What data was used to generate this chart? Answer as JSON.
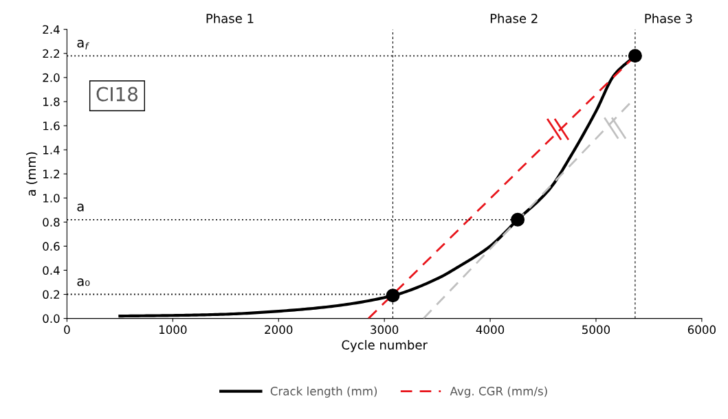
{
  "chart_data": {
    "type": "line",
    "xlabel": "Cycle number",
    "ylabel": "a (mm)",
    "xlim": [
      0,
      6000
    ],
    "xticks": [
      0,
      1000,
      2000,
      3000,
      4000,
      5000,
      6000
    ],
    "ylim": [
      0,
      2.4
    ],
    "yticks": [
      {
        "value": 0,
        "label": "0.0"
      },
      {
        "value": 0.2,
        "label": "0.2"
      },
      {
        "value": 0.4,
        "label": "0.4"
      },
      {
        "value": 0.6,
        "label": "0.6"
      },
      {
        "value": 0.8,
        "label": "0.8"
      },
      {
        "value": 1.0,
        "label": "1.0"
      },
      {
        "value": 1.2,
        "label": "1.2"
      },
      {
        "value": 1.4,
        "label": "1.4"
      },
      {
        "value": 1.6,
        "label": "1.6"
      },
      {
        "value": 1.8,
        "label": "1.8"
      },
      {
        "value": 2.0,
        "label": "2.0"
      },
      {
        "value": 2.2,
        "label": "2.2"
      },
      {
        "value": 2.4,
        "label": "2.4"
      }
    ],
    "grid": false,
    "legend": "bottom",
    "series": [
      {
        "name": "Crack length (mm)",
        "color": "#000000",
        "line_style": "solid",
        "marker": "none",
        "x": [
          500,
          1000,
          1500,
          2000,
          2500,
          3080,
          3500,
          3702,
          4000,
          4260,
          4567,
          4763,
          5000,
          5172,
          5370
        ],
        "values": [
          0.02,
          0.025,
          0.035,
          0.06,
          0.1,
          0.19,
          0.33,
          0.43,
          0.6,
          0.82,
          1.08,
          1.35,
          1.72,
          2.02,
          2.18
        ]
      },
      {
        "name": "Avg. CGR (mm/s)",
        "color": "#e8151b",
        "line_style": "dashed",
        "marker": "none",
        "x": [
          2850,
          5370
        ],
        "values": [
          0,
          2.18
        ]
      },
      {
        "color": "#c0c0c0",
        "line_style": "dashed",
        "marker": "none",
        "x": [
          3370,
          5335
        ],
        "values": [
          0,
          1.8
        ]
      },
      {
        "type": "scatter",
        "color": "#000000",
        "marker": "circle",
        "x": [
          3080,
          4260,
          5370
        ],
        "values": [
          0.19,
          0.82,
          2.18
        ]
      },
      {
        "color": "#000000",
        "line_style": "dotted",
        "marker": "none",
        "x": [
          0,
          3080
        ],
        "values": [
          0.2,
          0.2
        ]
      },
      {
        "color": "#000000",
        "line_style": "dotted",
        "marker": "none",
        "x": [
          0,
          4260
        ],
        "values": [
          0.82,
          0.82
        ]
      },
      {
        "color": "#000000",
        "line_style": "dotted",
        "marker": "none",
        "x": [
          0,
          5370
        ],
        "values": [
          2.18,
          2.18
        ]
      }
    ],
    "ref_lines": [
      {
        "axis": "x",
        "value": 3080,
        "color": "#000000",
        "line_style": "dashed"
      },
      {
        "axis": "x",
        "value": 5370,
        "color": "#000000",
        "line_style": "dashed"
      }
    ],
    "annotations": [
      "a₀",
      "a",
      "a$_{f}$",
      "CI18",
      "Phase 1",
      "Phase 2",
      "Phase 3"
    ]
  }
}
